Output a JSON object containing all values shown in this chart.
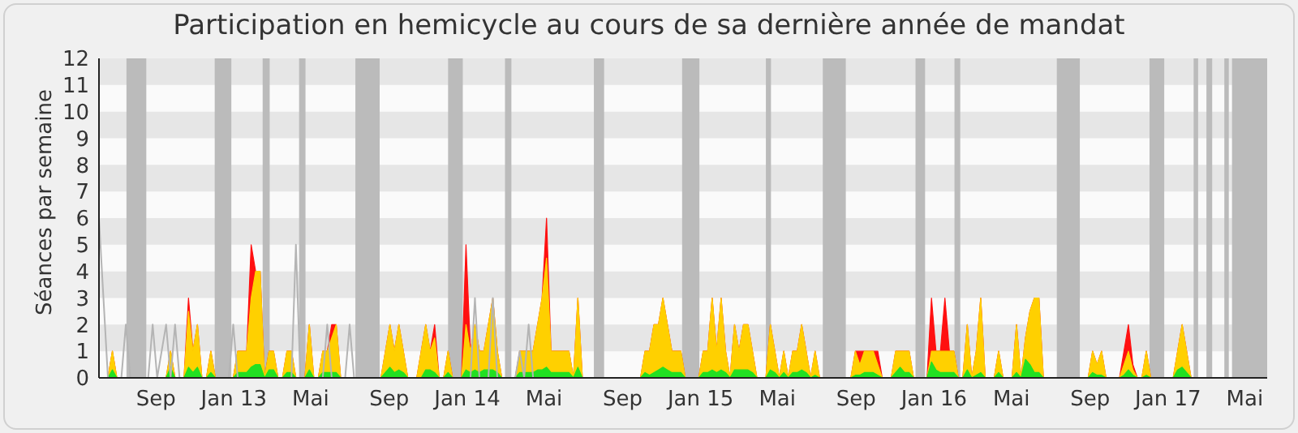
{
  "chart_data": {
    "type": "area",
    "title": "Participation en hemicycle au cours de sa dernière année de mandat",
    "ylabel": "Séances par semaine",
    "x": [
      "2012-06-04",
      "2012-06-18",
      "2012-06-25",
      "2012-07-02",
      "2012-09-17",
      "2012-09-24",
      "2012-10-01",
      "2012-10-15",
      "2012-10-22",
      "2012-10-29",
      "2012-11-05",
      "2012-11-12",
      "2012-11-19",
      "2012-11-26",
      "2012-12-03",
      "2012-12-31",
      "2013-01-07",
      "2013-01-14",
      "2013-01-21",
      "2013-01-28",
      "2013-02-04",
      "2013-02-11",
      "2013-02-18",
      "2013-02-25",
      "2013-03-04",
      "2013-03-11",
      "2013-03-18",
      "2013-03-25",
      "2013-04-01",
      "2013-04-08",
      "2013-04-22",
      "2013-04-29",
      "2013-05-06",
      "2013-05-13",
      "2013-05-20",
      "2013-05-27",
      "2013-06-03",
      "2013-06-10",
      "2013-06-17",
      "2013-08-19",
      "2013-09-02",
      "2013-09-09",
      "2013-09-16",
      "2013-09-23",
      "2013-09-30",
      "2013-10-14",
      "2013-10-21",
      "2013-10-28",
      "2013-11-04",
      "2013-11-11",
      "2013-11-18",
      "2013-11-25",
      "2013-12-02",
      "2013-12-09",
      "2013-12-23",
      "2013-12-30",
      "2014-01-06",
      "2014-01-13",
      "2014-01-20",
      "2014-01-27",
      "2014-02-03",
      "2014-02-10",
      "2014-02-17",
      "2014-02-24",
      "2014-03-17",
      "2014-03-24",
      "2014-03-31",
      "2014-04-07",
      "2014-04-14",
      "2014-04-21",
      "2014-04-28",
      "2014-05-05",
      "2014-05-12",
      "2014-05-19",
      "2014-05-26",
      "2014-06-02",
      "2014-06-09",
      "2014-06-16",
      "2014-06-23",
      "2014-06-30",
      "2014-09-29",
      "2014-10-06",
      "2014-10-13",
      "2014-10-20",
      "2014-10-27",
      "2014-11-03",
      "2014-11-10",
      "2014-11-17",
      "2014-11-24",
      "2014-12-01",
      "2014-12-08",
      "2014-12-29",
      "2015-01-05",
      "2015-01-12",
      "2015-01-19",
      "2015-01-26",
      "2015-02-02",
      "2015-02-09",
      "2015-02-16",
      "2015-02-23",
      "2015-03-02",
      "2015-03-09",
      "2015-03-16",
      "2015-03-23",
      "2015-03-30",
      "2015-04-13",
      "2015-04-20",
      "2015-04-27",
      "2015-05-04",
      "2015-05-11",
      "2015-05-18",
      "2015-05-25",
      "2015-06-01",
      "2015-06-08",
      "2015-06-15",
      "2015-06-22",
      "2015-06-29",
      "2015-07-06",
      "2015-08-24",
      "2015-08-31",
      "2015-09-07",
      "2015-09-14",
      "2015-09-21",
      "2015-09-28",
      "2015-10-05",
      "2015-10-12",
      "2015-10-26",
      "2015-11-02",
      "2015-11-09",
      "2015-11-16",
      "2015-11-23",
      "2015-11-30",
      "2015-12-21",
      "2015-12-28",
      "2016-01-04",
      "2016-01-11",
      "2016-01-18",
      "2016-01-25",
      "2016-02-01",
      "2016-02-08",
      "2016-02-15",
      "2016-02-22",
      "2016-02-29",
      "2016-03-07",
      "2016-03-14",
      "2016-03-21",
      "2016-04-04",
      "2016-04-11",
      "2016-04-18",
      "2016-05-02",
      "2016-05-09",
      "2016-05-16",
      "2016-05-23",
      "2016-05-30",
      "2016-06-06",
      "2016-06-13",
      "2016-06-20",
      "2016-08-29",
      "2016-09-05",
      "2016-09-12",
      "2016-09-19",
      "2016-09-26",
      "2016-10-17",
      "2016-10-24",
      "2016-10-31",
      "2016-11-07",
      "2016-11-14",
      "2016-11-21",
      "2016-11-28",
      "2016-12-05",
      "2017-01-09",
      "2017-01-16",
      "2017-01-23",
      "2017-01-30",
      "2017-02-06",
      "2017-06-05"
    ],
    "series": [
      {
        "type": "line",
        "color": "#b4b4b4",
        "x": [
          "2012-06-04",
          "2012-06-18",
          "2012-07-09",
          "2012-07-16",
          "2012-07-23",
          "2012-08-20",
          "2012-08-27",
          "2012-09-03",
          "2012-09-17",
          "2012-09-24",
          "2012-10-01",
          "2012-10-08",
          "2012-12-24",
          "2012-12-31",
          "2013-01-07",
          "2013-04-01",
          "2013-04-08",
          "2013-04-15",
          "2013-05-20",
          "2013-05-27",
          "2013-06-03",
          "2013-06-24",
          "2013-07-01",
          "2013-07-08",
          "2014-01-06",
          "2014-01-13",
          "2014-01-20",
          "2014-02-03",
          "2014-02-10",
          "2014-02-17",
          "2014-03-17",
          "2014-03-24",
          "2014-03-31",
          "2014-04-07",
          "2014-04-14"
        ],
        "values": [
          6,
          0,
          0,
          2,
          0,
          0,
          2,
          0,
          2,
          0,
          2,
          0,
          0,
          2,
          0,
          0,
          5,
          0,
          0,
          2,
          0,
          0,
          2,
          0,
          0,
          3,
          0,
          0,
          3,
          0,
          0,
          1,
          0,
          2,
          0
        ]
      },
      {
        "color": "#ff1010",
        "values": [
          0,
          0,
          1,
          0,
          0,
          1,
          0,
          0,
          3,
          1,
          2,
          0,
          0,
          1,
          0,
          0,
          1,
          1,
          1,
          5,
          4,
          4,
          0,
          1,
          1,
          0,
          0,
          1,
          1,
          0,
          0,
          2,
          0,
          0,
          1,
          1,
          2,
          2,
          0,
          0,
          2,
          1,
          2,
          1,
          0,
          0,
          1,
          2,
          1,
          2,
          0,
          0,
          1,
          0,
          0,
          5,
          1,
          2,
          1,
          1,
          2,
          3,
          1,
          0,
          0,
          1,
          1,
          1,
          1,
          2,
          3,
          6,
          1,
          1,
          1,
          1,
          1,
          0,
          3,
          0,
          0,
          1,
          1,
          2,
          2,
          3,
          2,
          1,
          1,
          1,
          0,
          0,
          1,
          1,
          3,
          1,
          3,
          1,
          0,
          2,
          1,
          2,
          2,
          1,
          0,
          0,
          2,
          1,
          0,
          1,
          0,
          1,
          1,
          2,
          1,
          0,
          1,
          0,
          0,
          1,
          1,
          1,
          1,
          1,
          1,
          0,
          0,
          1,
          1,
          1,
          1,
          0,
          0,
          3,
          1,
          1,
          3,
          1,
          1,
          0,
          0,
          2,
          0,
          1,
          3,
          0,
          0,
          1,
          0,
          0,
          2,
          0,
          1.5,
          2.5,
          3,
          3,
          0,
          0,
          1,
          0.5,
          1,
          0,
          0,
          1,
          2,
          0.5,
          0,
          0,
          1,
          0,
          0,
          1,
          2,
          1,
          0,
          0
        ]
      },
      {
        "color": "#ffd000",
        "values": [
          0,
          0,
          1,
          0,
          0,
          1,
          0,
          0,
          2.5,
          1,
          2,
          0,
          0,
          1,
          0,
          0,
          1,
          1,
          1,
          3,
          4,
          4,
          0,
          1,
          1,
          0,
          0,
          1,
          1,
          0,
          0,
          2,
          0,
          0,
          1,
          1,
          1.5,
          2,
          0,
          0,
          2,
          1,
          2,
          1,
          0,
          0,
          1,
          2,
          1,
          1.5,
          0,
          0,
          1,
          0,
          0,
          2,
          1,
          2,
          1,
          1,
          2,
          3,
          1,
          0,
          0,
          1,
          1,
          1,
          1,
          2,
          3,
          4.5,
          1,
          1,
          1,
          1,
          1,
          0,
          3,
          0,
          0,
          1,
          1,
          2,
          2,
          3,
          2,
          1,
          1,
          1,
          0,
          0,
          1,
          1,
          3,
          1,
          3,
          1,
          0,
          2,
          1,
          2,
          2,
          1,
          0,
          0,
          2,
          1,
          0,
          1,
          0,
          1,
          1,
          2,
          1,
          0,
          1,
          0,
          0,
          1,
          0.5,
          1,
          1,
          1,
          0.5,
          0,
          0,
          1,
          1,
          1,
          1,
          0,
          0,
          1,
          1,
          1,
          1,
          1,
          1,
          0,
          0,
          2,
          0,
          1,
          3,
          0,
          0,
          1,
          0,
          0,
          2,
          0,
          1.5,
          2.5,
          3,
          3,
          0,
          0,
          1,
          0.5,
          1,
          0,
          0,
          0.5,
          1,
          0.3,
          0,
          0,
          1,
          0,
          0,
          1,
          2,
          1,
          0,
          0
        ]
      },
      {
        "color": "#22e022",
        "values": [
          0,
          0,
          0.3,
          0,
          0,
          0.4,
          0,
          0,
          0.4,
          0.2,
          0.4,
          0,
          0,
          0.2,
          0,
          0,
          0.2,
          0.2,
          0.2,
          0.4,
          0.5,
          0.5,
          0,
          0.3,
          0.3,
          0,
          0,
          0.2,
          0.2,
          0,
          0,
          0.3,
          0,
          0,
          0.2,
          0.2,
          0.2,
          0.2,
          0,
          0,
          0.4,
          0.2,
          0.3,
          0.2,
          0,
          0,
          0,
          0.3,
          0.3,
          0.2,
          0,
          0,
          0.2,
          0,
          0,
          0.3,
          0.2,
          0.3,
          0.2,
          0.3,
          0.3,
          0.3,
          0.2,
          0,
          0,
          0.2,
          0.2,
          0.2,
          0.2,
          0.3,
          0.3,
          0.4,
          0.2,
          0.2,
          0.2,
          0.2,
          0.2,
          0,
          0.4,
          0,
          0,
          0.2,
          0.1,
          0.2,
          0.3,
          0.4,
          0.3,
          0.2,
          0.2,
          0.2,
          0,
          0,
          0.2,
          0.2,
          0.3,
          0.2,
          0.3,
          0.2,
          0,
          0.3,
          0.3,
          0.3,
          0.3,
          0.2,
          0,
          0,
          0.3,
          0.2,
          0,
          0.2,
          0,
          0.2,
          0.2,
          0.3,
          0.2,
          0,
          0.1,
          0,
          0,
          0.1,
          0.1,
          0.2,
          0.2,
          0.2,
          0.1,
          0,
          0,
          0.2,
          0.4,
          0.2,
          0.2,
          0,
          0,
          0.6,
          0.3,
          0.2,
          0.2,
          0.2,
          0.2,
          0,
          0,
          0.3,
          0,
          0.1,
          0.2,
          0,
          0,
          0.2,
          0,
          0,
          0.2,
          0,
          0.7,
          0.5,
          0.2,
          0.2,
          0,
          0,
          0.2,
          0.1,
          0.1,
          0,
          0,
          0.1,
          0.3,
          0.1,
          0,
          0,
          0.1,
          0,
          0,
          0.3,
          0.4,
          0.2,
          0,
          0
        ]
      }
    ],
    "xlim": [
      "2012-06-04",
      "2017-06-05"
    ],
    "xticks": [
      {
        "value": "2012-09-01",
        "label": "Sep"
      },
      {
        "value": "2013-01-01",
        "label": "Jan 13"
      },
      {
        "value": "2013-05-01",
        "label": "Mai"
      },
      {
        "value": "2013-09-01",
        "label": "Sep"
      },
      {
        "value": "2014-01-01",
        "label": "Jan 14"
      },
      {
        "value": "2014-05-01",
        "label": "Mai"
      },
      {
        "value": "2014-09-01",
        "label": "Sep"
      },
      {
        "value": "2015-01-01",
        "label": "Jan 15"
      },
      {
        "value": "2015-05-01",
        "label": "Mai"
      },
      {
        "value": "2015-09-01",
        "label": "Sep"
      },
      {
        "value": "2016-01-01",
        "label": "Jan 16"
      },
      {
        "value": "2016-05-01",
        "label": "Mai"
      },
      {
        "value": "2016-09-01",
        "label": "Sep"
      },
      {
        "value": "2017-01-01",
        "label": "Jan 17"
      },
      {
        "value": "2017-05-01",
        "label": "Mai"
      }
    ],
    "ylim": [
      0,
      12
    ],
    "yticks": [
      0,
      1,
      2,
      3,
      4,
      5,
      6,
      7,
      8,
      9,
      10,
      11,
      12
    ],
    "bands": [
      {
        "axis": "y",
        "from": 1,
        "to": 2,
        "color": "#e6e6e6"
      },
      {
        "axis": "y",
        "from": 3,
        "to": 4,
        "color": "#e6e6e6"
      },
      {
        "axis": "y",
        "from": 5,
        "to": 6,
        "color": "#e6e6e6"
      },
      {
        "axis": "y",
        "from": 7,
        "to": 8,
        "color": "#e6e6e6"
      },
      {
        "axis": "y",
        "from": 9,
        "to": 10,
        "color": "#e6e6e6"
      },
      {
        "axis": "y",
        "from": 11,
        "to": 12,
        "color": "#e6e6e6"
      },
      {
        "axis": "x",
        "from": "2012-07-17",
        "to": "2012-08-17",
        "color": "#bbbbbb"
      },
      {
        "axis": "x",
        "from": "2012-12-02",
        "to": "2012-12-28",
        "color": "#bbbbbb"
      },
      {
        "axis": "x",
        "from": "2013-02-15",
        "to": "2013-02-26",
        "color": "#bbbbbb"
      },
      {
        "axis": "x",
        "from": "2013-04-13",
        "to": "2013-04-23",
        "color": "#bbbbbb"
      },
      {
        "axis": "x",
        "from": "2013-07-10",
        "to": "2013-08-17",
        "color": "#bbbbbb"
      },
      {
        "axis": "x",
        "from": "2013-12-02",
        "to": "2013-12-25",
        "color": "#bbbbbb"
      },
      {
        "axis": "x",
        "from": "2014-03-01",
        "to": "2014-03-11",
        "color": "#bbbbbb"
      },
      {
        "axis": "x",
        "from": "2014-07-18",
        "to": "2014-08-03",
        "color": "#bbbbbb"
      },
      {
        "axis": "x",
        "from": "2014-12-03",
        "to": "2014-12-30",
        "color": "#bbbbbb"
      },
      {
        "axis": "x",
        "from": "2015-04-13",
        "to": "2015-04-21",
        "color": "#bbbbbb"
      },
      {
        "axis": "x",
        "from": "2015-07-11",
        "to": "2015-08-16",
        "color": "#bbbbbb"
      },
      {
        "axis": "x",
        "from": "2015-12-03",
        "to": "2015-12-18",
        "color": "#bbbbbb"
      },
      {
        "axis": "x",
        "from": "2016-02-02",
        "to": "2016-02-11",
        "color": "#bbbbbb"
      },
      {
        "axis": "x",
        "from": "2016-07-11",
        "to": "2016-08-16",
        "color": "#bbbbbb"
      },
      {
        "axis": "x",
        "from": "2016-12-03",
        "to": "2016-12-26",
        "color": "#bbbbbb"
      },
      {
        "axis": "x",
        "from": "2017-02-10",
        "to": "2017-02-17",
        "color": "#bbbbbb"
      },
      {
        "axis": "x",
        "from": "2017-03-02",
        "to": "2017-03-11",
        "color": "#bbbbbb"
      },
      {
        "axis": "x",
        "from": "2017-03-30",
        "to": "2017-04-06",
        "color": "#bbbbbb"
      },
      {
        "axis": "x",
        "from": "2017-04-11",
        "to": "2017-06-05",
        "color": "#bbbbbb"
      }
    ]
  }
}
